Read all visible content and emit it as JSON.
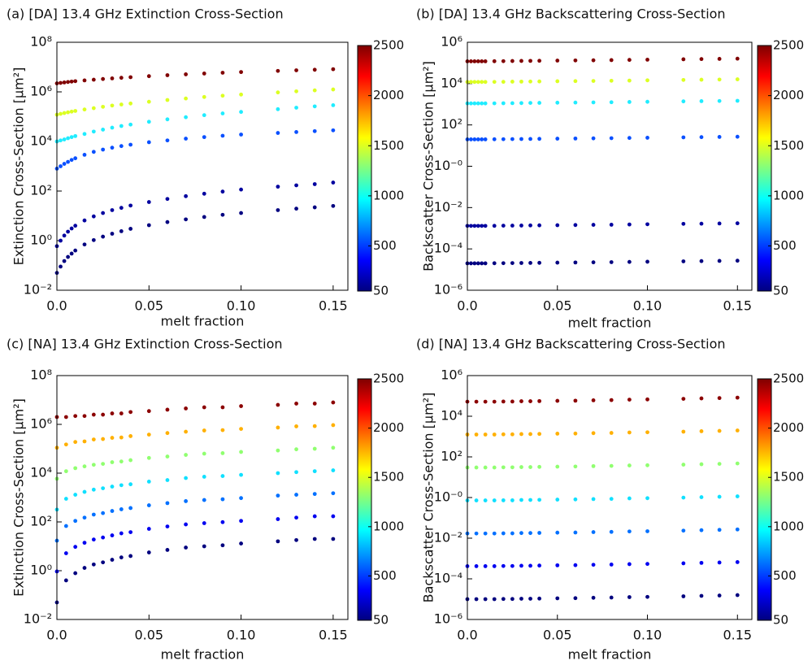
{
  "chart_data": [
    {
      "type": "scatter",
      "title": "(a) [DA] 13.4 GHz Extinction Cross-Section",
      "xlabel": "melt fraction",
      "ylabel": "Extinction Cross-Section  [μm²]",
      "x": [
        0,
        0.002,
        0.004,
        0.006,
        0.008,
        0.01,
        0.015,
        0.02,
        0.025,
        0.03,
        0.035,
        0.04,
        0.05,
        0.06,
        0.07,
        0.08,
        0.09,
        0.1,
        0.12,
        0.13,
        0.14,
        0.15
      ],
      "xlim": [
        0,
        0.158
      ],
      "xticks": [
        {
          "value": 0,
          "label": "0.0"
        },
        0.05,
        {
          "value": 0.1,
          "label": "0.10"
        },
        0.15
      ],
      "ylim": [
        0.01,
        100000000.0
      ],
      "yticks": [
        {
          "value": 0.01,
          "label": "10⁻²"
        },
        {
          "value": 1,
          "label": "10⁰"
        },
        {
          "value": 100.0,
          "label": "10²"
        },
        {
          "value": 10000.0,
          "label": "10⁴"
        },
        {
          "value": 1000000.0,
          "label": "10⁶"
        },
        {
          "value": 100000000.0,
          "label": "10⁸"
        }
      ],
      "log_y": true,
      "series": [
        {
          "color": "#800000",
          "values": [
            2200000.0,
            2300000.0,
            2400000.0,
            2500000.0,
            2600000.0,
            2700000.0,
            2900000.0,
            3100000.0,
            3300000.0,
            3500000.0,
            3700000.0,
            3900000.0,
            4300000.0,
            4700000.0,
            5100000.0,
            5500000.0,
            5900000.0,
            6300000.0,
            7000000.0,
            7400000.0,
            7800000.0,
            8200000.0
          ]
        },
        {
          "color": "#dcff22",
          "values": [
            120000.0,
            130000.0,
            140000.0,
            150000.0,
            160000.0,
            170000.0,
            195000.0,
            220000.0,
            250000.0,
            280000.0,
            310000.0,
            340000.0,
            400000.0,
            470000.0,
            540000.0,
            620000.0,
            700000.0,
            780000.0,
            950000.0,
            1050000.0,
            1150000.0,
            1250000.0
          ]
        },
        {
          "color": "#20ecff",
          "values": [
            10000.0,
            11000.0,
            12000.0,
            13500.0,
            15000.0,
            16500.0,
            20000.0,
            25000.0,
            30000.0,
            36000.0,
            42000.0,
            48000.0,
            62000.0,
            78000.0,
            95000.0,
            115000.0,
            135000.0,
            155000.0,
            200000.0,
            230000.0,
            260000.0,
            290000.0
          ]
        },
        {
          "color": "#0a50ff",
          "values": [
            800,
            1000,
            1250,
            1500,
            1800,
            2100,
            2900,
            3800,
            4700,
            5600,
            6500,
            7400,
            9300,
            11000.0,
            13000.0,
            15000.0,
            17000.0,
            19000.0,
            22000.0,
            24000.0,
            26000.0,
            28000.0
          ]
        },
        {
          "color": "#00009f",
          "values": [
            0.6,
            1,
            1.6,
            2.3,
            3.1,
            4,
            6.5,
            9.5,
            13,
            17,
            21,
            26,
            36,
            48,
            62,
            78,
            95,
            115,
            150,
            170,
            190,
            220
          ]
        },
        {
          "color": "#000080",
          "values": [
            0.05,
            0.09,
            0.15,
            0.22,
            0.3,
            0.4,
            0.7,
            1.05,
            1.45,
            1.9,
            2.4,
            3,
            4.2,
            5.6,
            7.2,
            9,
            11,
            13,
            17,
            19.5,
            22,
            25
          ]
        }
      ],
      "colorbar": {
        "lim": [
          50,
          2500
        ],
        "ticks": [
          50,
          500,
          1000,
          1500,
          2000,
          2500
        ],
        "colormap": "jet"
      }
    },
    {
      "type": "scatter",
      "title": "(b) [DA] 13.4 GHz Backscattering Cross-Section",
      "xlabel": "melt fraction",
      "ylabel": "Backscatter Cross-Section [μm²]",
      "x": [
        0,
        0.002,
        0.004,
        0.006,
        0.008,
        0.01,
        0.015,
        0.02,
        0.025,
        0.03,
        0.035,
        0.04,
        0.05,
        0.06,
        0.07,
        0.08,
        0.09,
        0.1,
        0.12,
        0.13,
        0.14,
        0.15
      ],
      "xlim": [
        0,
        0.158
      ],
      "xticks": [
        {
          "value": 0,
          "label": "0.0"
        },
        0.05,
        {
          "value": 0.1,
          "label": "0.10"
        },
        0.15
      ],
      "ylim": [
        1e-06,
        1000000.0
      ],
      "yticks": [
        {
          "value": 1e-06,
          "label": "10⁻⁶"
        },
        {
          "value": 0.0001,
          "label": "10⁻⁴"
        },
        {
          "value": 0.01,
          "label": "10⁻²"
        },
        {
          "value": 1,
          "label": "10⁻⁰"
        },
        {
          "value": 100.0,
          "label": "10²"
        },
        {
          "value": 10000.0,
          "label": "10⁴"
        },
        {
          "value": 1000000.0,
          "label": "10⁶"
        }
      ],
      "log_y": true,
      "series": [
        {
          "color": "#800000",
          "values": [
            120000.0,
            120000.0,
            120000.0,
            120000.0,
            120000.0,
            120000.0,
            121000.0,
            122000.0,
            124000.0,
            125000.0,
            126000.0,
            127000.0,
            130000.0,
            132000.0,
            134000.0,
            137000.0,
            140000.0,
            144000.0,
            150000.0,
            154000.0,
            157000.0,
            161000.0
          ]
        },
        {
          "color": "#dcff22",
          "values": [
            12000.0,
            12000.0,
            12000.0,
            12000.0,
            12000.0,
            12000.0,
            12100.0,
            12200.0,
            12400.0,
            12500.0,
            12600.0,
            12700.0,
            13000.0,
            13200.0,
            13400.0,
            13700.0,
            14000.0,
            14400.0,
            15000.0,
            15400.0,
            15700.0,
            16100.0
          ]
        },
        {
          "color": "#20ecff",
          "values": [
            1100,
            1100,
            1100,
            1100,
            1100,
            1100,
            1110,
            1120,
            1130,
            1140,
            1160,
            1170,
            1190,
            1210,
            1230,
            1250,
            1290,
            1320,
            1380,
            1410,
            1440,
            1470
          ]
        },
        {
          "color": "#0a50ff",
          "values": [
            20,
            20,
            20,
            20,
            20,
            20,
            20.2,
            20.4,
            20.6,
            20.8,
            21,
            21.2,
            21.6,
            22,
            22.4,
            22.8,
            23.4,
            24,
            25,
            25.6,
            26.2,
            26.8
          ]
        },
        {
          "color": "#00009f",
          "values": [
            0.0013,
            0.0013,
            0.0013,
            0.0013,
            0.0013,
            0.0013,
            0.00131,
            0.00133,
            0.00134,
            0.00135,
            0.00137,
            0.00138,
            0.0014,
            0.00143,
            0.00146,
            0.00148,
            0.00152,
            0.00156,
            0.00163,
            0.00166,
            0.0017,
            0.00174
          ]
        },
        {
          "color": "#000080",
          "values": [
            2e-05,
            2e-05,
            2e-05,
            2e-05,
            2e-05,
            2e-05,
            2.02e-05,
            2.04e-05,
            2.06e-05,
            2.08e-05,
            2.1e-05,
            2.12e-05,
            2.16e-05,
            2.2e-05,
            2.24e-05,
            2.28e-05,
            2.34e-05,
            2.4e-05,
            2.5e-05,
            2.56e-05,
            2.62e-05,
            2.68e-05
          ]
        }
      ],
      "colorbar": {
        "lim": [
          50,
          2500
        ],
        "ticks": [
          50,
          500,
          1000,
          1500,
          2000,
          2500
        ],
        "colormap": "jet"
      }
    },
    {
      "type": "scatter",
      "title": "(c) [NA] 13.4 GHz Extinction Cross-Section",
      "xlabel": "melt fraction",
      "ylabel": "Extinction Cross-Section  [μm²]",
      "x": [
        0,
        0.005,
        0.01,
        0.015,
        0.02,
        0.025,
        0.03,
        0.035,
        0.04,
        0.05,
        0.06,
        0.07,
        0.08,
        0.09,
        0.1,
        0.12,
        0.13,
        0.14,
        0.15
      ],
      "xlim": [
        0,
        0.158
      ],
      "xticks": [
        {
          "value": 0,
          "label": "0.0"
        },
        0.05,
        {
          "value": 0.1,
          "label": "0.10"
        },
        0.15
      ],
      "ylim": [
        0.01,
        100000000.0
      ],
      "yticks": [
        {
          "value": 0.01,
          "label": "10⁻²"
        },
        {
          "value": 1,
          "label": "10⁰"
        },
        {
          "value": 100.0,
          "label": "10²"
        },
        {
          "value": 10000.0,
          "label": "10⁴"
        },
        {
          "value": 1000000.0,
          "label": "10⁶"
        },
        {
          "value": 100000000.0,
          "label": "10⁸"
        }
      ],
      "log_y": true,
      "series": [
        {
          "color": "#00007f",
          "values": [
            0.05,
            0.4,
            0.79,
            1.3,
            1.8,
            2.2,
            2.8,
            3.5,
            4,
            5.6,
            7.1,
            8.9,
            10,
            11,
            13,
            16,
            18,
            20,
            20
          ]
        },
        {
          "color": "#0000f0",
          "values": [
            0.93,
            5.2,
            9.5,
            14,
            19,
            23,
            28,
            34,
            38,
            52,
            65,
            79,
            89,
            98,
            110,
            130,
            150,
            170,
            170
          ]
        },
        {
          "color": "#0070ff",
          "values": [
            17,
            68,
            110,
            150,
            200,
            230,
            280,
            330,
            370,
            480,
            590,
            710,
            790,
            850,
            950,
            1200,
            1300,
            1400,
            1500
          ]
        },
        {
          "color": "#10e0ff",
          "values": [
            320,
            890,
            1300,
            1700,
            2100,
            2400,
            2800,
            3200,
            3500,
            4500,
            5200,
            6300,
            7100,
            7600,
            8500,
            10000.0,
            11000.0,
            12000.0,
            13000.0
          ]
        },
        {
          "color": "#90ff70",
          "values": [
            5900,
            12000.0,
            16000.0,
            19000.0,
            22000.0,
            24000.0,
            28000.0,
            30000.0,
            34000.0,
            42000.0,
            48000.0,
            56000.0,
            63000.0,
            66000.0,
            74000.0,
            85000.0,
            95000.0,
            100000.0,
            110000.0
          ]
        },
        {
          "color": "#ffb000",
          "values": [
            110000.0,
            150000.0,
            190000.0,
            200000.0,
            240000.0,
            250000.0,
            280000.0,
            290000.0,
            330000.0,
            380000.0,
            440000.0,
            500000.0,
            560000.0,
            580000.0,
            650000.0,
            740000.0,
            830000.0,
            850000.0,
            930000.0
          ]
        },
        {
          "color": "#8b0000",
          "values": [
            2000000.0,
            2000000.0,
            2200000.0,
            2200000.0,
            2500000.0,
            2500000.0,
            2800000.0,
            2800000.0,
            3200000.0,
            3500000.0,
            4000000.0,
            4500000.0,
            5000000.0,
            5000000.0,
            5600000.0,
            6300000.0,
            7100000.0,
            7100000.0,
            7900000.0
          ]
        }
      ],
      "colorbar": {
        "lim": [
          50,
          2500
        ],
        "ticks": [
          50,
          500,
          1000,
          1500,
          2000,
          2500
        ],
        "colormap": "jet"
      }
    },
    {
      "type": "scatter",
      "title": "(d) [NA] 13.4 GHz Backscattering Cross-Section",
      "xlabel": "melt fraction",
      "ylabel": "Backscatter Cross-Section [μm²]",
      "x": [
        0,
        0.005,
        0.01,
        0.015,
        0.02,
        0.025,
        0.03,
        0.035,
        0.04,
        0.05,
        0.06,
        0.07,
        0.08,
        0.09,
        0.1,
        0.12,
        0.13,
        0.14,
        0.15
      ],
      "xlim": [
        0,
        0.158
      ],
      "xticks": [
        {
          "value": 0,
          "label": "0.0"
        },
        0.05,
        {
          "value": 0.1,
          "label": "0.10"
        },
        0.15
      ],
      "ylim": [
        1e-06,
        1000000.0
      ],
      "yticks": [
        {
          "value": 1e-06,
          "label": "10⁻⁶"
        },
        {
          "value": 0.0001,
          "label": "10⁻⁴"
        },
        {
          "value": 0.01,
          "label": "10⁻²"
        },
        {
          "value": 1,
          "label": "10⁻⁰"
        },
        {
          "value": 100.0,
          "label": "10²"
        },
        {
          "value": 10000.0,
          "label": "10⁴"
        },
        {
          "value": 1000000.0,
          "label": "10⁶"
        }
      ],
      "log_y": true,
      "series": [
        {
          "color": "#00007f",
          "values": [
            1e-05,
            1e-05,
            1e-05,
            1e-05,
            1.02e-05,
            1.02e-05,
            1.05e-05,
            1.05e-05,
            1.07e-05,
            1.1e-05,
            1.12e-05,
            1.17e-05,
            1.2e-05,
            1.26e-05,
            1.29e-05,
            1.38e-05,
            1.45e-05,
            1.51e-05,
            1.58e-05
          ]
        },
        {
          "color": "#0000f0",
          "values": [
            0.00042,
            0.00042,
            0.00042,
            0.00042,
            0.000428,
            0.000428,
            0.000441,
            0.000441,
            0.000449,
            0.000462,
            0.00047,
            0.000491,
            0.000504,
            0.000529,
            0.000542,
            0.00058,
            0.000609,
            0.000634,
            0.000664
          ]
        },
        {
          "color": "#0070ff",
          "values": [
            0.017,
            0.017,
            0.017,
            0.017,
            0.0173,
            0.0173,
            0.0179,
            0.0179,
            0.0182,
            0.0187,
            0.019,
            0.0199,
            0.0204,
            0.0214,
            0.0219,
            0.0235,
            0.0247,
            0.0257,
            0.0269
          ]
        },
        {
          "color": "#10e0ff",
          "values": [
            0.72,
            0.72,
            0.72,
            0.72,
            0.73,
            0.73,
            0.76,
            0.76,
            0.77,
            0.79,
            0.81,
            0.84,
            0.86,
            0.91,
            0.93,
            0.99,
            1.04,
            1.09,
            1.14
          ]
        },
        {
          "color": "#90ff70",
          "values": [
            30,
            30,
            30,
            30,
            30.6,
            30.6,
            31.5,
            31.5,
            32.1,
            33,
            33.6,
            35.1,
            36,
            37.8,
            38.7,
            41.4,
            43.5,
            45.3,
            47.4
          ]
        },
        {
          "color": "#ffb000",
          "values": [
            1260,
            1260,
            1260,
            1260,
            1285,
            1285,
            1323,
            1323,
            1348,
            1386,
            1411,
            1474,
            1512,
            1588,
            1625,
            1739,
            1827,
            1903,
            1991
          ]
        },
        {
          "color": "#8b0000",
          "values": [
            52000.0,
            52000.0,
            52000.0,
            52000.0,
            53000.0,
            53000.0,
            54600.0,
            54600.0,
            55600.0,
            57200.0,
            58200.0,
            60800.0,
            62400.0,
            65500.0,
            67100.0,
            71800.0,
            75400.0,
            78500.0,
            82200.0
          ]
        }
      ],
      "colorbar": {
        "lim": [
          50,
          2500
        ],
        "ticks": [
          50,
          500,
          1000,
          1500,
          2000,
          2500
        ],
        "colormap": "jet"
      }
    }
  ]
}
